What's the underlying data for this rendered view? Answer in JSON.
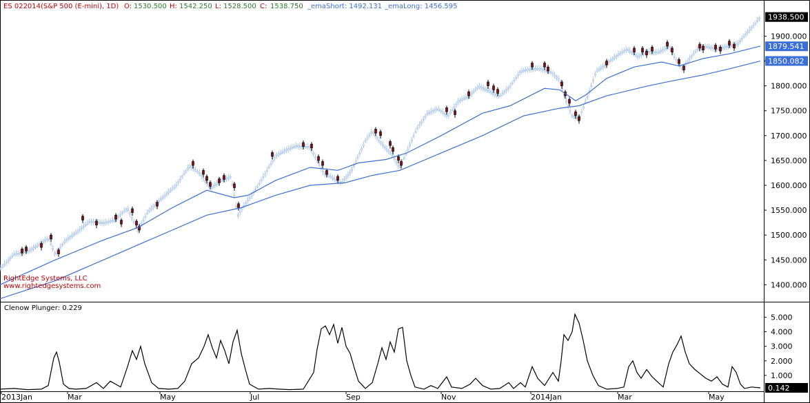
{
  "header": {
    "symbol": "ES 022014(S&P 500 (E-mini), 1D)",
    "o_label": "O:",
    "o_value": "1530.500",
    "h_label": "H:",
    "h_value": "1542.250",
    "l_label": "L:",
    "l_value": "1528.500",
    "c_label": "C:",
    "c_value": "1538.750",
    "ema_short": "_emaShort: 1492.131",
    "ema_long": "_emaLong: 1456.595"
  },
  "watermark": {
    "line1": "RightEdge Systems, LLC",
    "line2": "www.rightedgesystems.com"
  },
  "indicator_label": "Clenow Plunger: 0.229",
  "colors": {
    "up_candle": "#a9c6e8",
    "down_candle": "#8b0a0a",
    "ema": "#3a6fd8",
    "plunger": "#000000",
    "last_price_bg": "#000000",
    "ema_short_bg": "#3a6fd8",
    "ema_long_bg": "#3a6fd8",
    "header_red": "#c00000",
    "header_green": "#2a7a2a",
    "header_blue": "#3a6fd8"
  },
  "chart_data": [
    {
      "type": "candlestick",
      "panel": "price",
      "x_ticks": [
        "2013Jan",
        "Mar",
        "May",
        "Jul",
        "Sep",
        "Nov",
        "2014Jan",
        "Mar",
        "May"
      ],
      "y_ticks": [
        "1400.000",
        "1450.000",
        "1500.000",
        "1550.000",
        "1600.000",
        "1650.000",
        "1700.000",
        "1750.000",
        "1800.000",
        "1850.000",
        "1900.000"
      ],
      "ylim": [
        1370,
        1945
      ],
      "price_points": [
        [
          0,
          1432
        ],
        [
          20,
          1462
        ],
        [
          40,
          1468
        ],
        [
          55,
          1480
        ],
        [
          70,
          1495
        ],
        [
          80,
          1462
        ],
        [
          95,
          1490
        ],
        [
          110,
          1505
        ],
        [
          130,
          1528
        ],
        [
          150,
          1525
        ],
        [
          165,
          1530
        ],
        [
          185,
          1555
        ],
        [
          200,
          1510
        ],
        [
          215,
          1548
        ],
        [
          235,
          1575
        ],
        [
          255,
          1600
        ],
        [
          275,
          1640
        ],
        [
          290,
          1625
        ],
        [
          305,
          1595
        ],
        [
          320,
          1610
        ],
        [
          335,
          1618
        ],
        [
          345,
          1540
        ],
        [
          355,
          1562
        ],
        [
          370,
          1590
        ],
        [
          385,
          1625
        ],
        [
          400,
          1660
        ],
        [
          415,
          1672
        ],
        [
          430,
          1680
        ],
        [
          450,
          1678
        ],
        [
          460,
          1650
        ],
        [
          470,
          1625
        ],
        [
          480,
          1618
        ],
        [
          495,
          1605
        ],
        [
          510,
          1630
        ],
        [
          520,
          1660
        ],
        [
          530,
          1690
        ],
        [
          540,
          1710
        ],
        [
          550,
          1690
        ],
        [
          560,
          1675
        ],
        [
          570,
          1660
        ],
        [
          580,
          1635
        ],
        [
          590,
          1668
        ],
        [
          605,
          1715
        ],
        [
          620,
          1745
        ],
        [
          635,
          1755
        ],
        [
          650,
          1740
        ],
        [
          665,
          1770
        ],
        [
          680,
          1780
        ],
        [
          695,
          1800
        ],
        [
          710,
          1790
        ],
        [
          725,
          1780
        ],
        [
          740,
          1800
        ],
        [
          755,
          1830
        ],
        [
          770,
          1835
        ],
        [
          785,
          1835
        ],
        [
          800,
          1828
        ],
        [
          812,
          1812
        ],
        [
          820,
          1775
        ],
        [
          830,
          1740
        ],
        [
          840,
          1735
        ],
        [
          850,
          1770
        ],
        [
          865,
          1830
        ],
        [
          880,
          1845
        ],
        [
          895,
          1862
        ],
        [
          910,
          1875
        ],
        [
          925,
          1860
        ],
        [
          940,
          1870
        ],
        [
          955,
          1868
        ],
        [
          970,
          1880
        ],
        [
          980,
          1855
        ],
        [
          990,
          1835
        ],
        [
          1000,
          1855
        ],
        [
          1012,
          1875
        ],
        [
          1025,
          1880
        ],
        [
          1040,
          1875
        ],
        [
          1055,
          1880
        ],
        [
          1070,
          1885
        ],
        [
          1085,
          1910
        ],
        [
          1095,
          1925
        ],
        [
          1103,
          1940
        ]
      ],
      "down_candles": [
        [
          32,
          1464
        ],
        [
          38,
          1468
        ],
        [
          60,
          1475
        ],
        [
          74,
          1492
        ],
        [
          85,
          1462
        ],
        [
          120,
          1530
        ],
        [
          140,
          1520
        ],
        [
          168,
          1532
        ],
        [
          176,
          1522
        ],
        [
          192,
          1545
        ],
        [
          198,
          1520
        ],
        [
          202,
          1510
        ],
        [
          228,
          1558
        ],
        [
          280,
          1640
        ],
        [
          295,
          1622
        ],
        [
          300,
          1610
        ],
        [
          305,
          1598
        ],
        [
          318,
          1605
        ],
        [
          325,
          1612
        ],
        [
          340,
          1595
        ],
        [
          346,
          1555
        ],
        [
          395,
          1658
        ],
        [
          440,
          1678
        ],
        [
          452,
          1675
        ],
        [
          462,
          1650
        ],
        [
          468,
          1640
        ],
        [
          474,
          1622
        ],
        [
          490,
          1610
        ],
        [
          545,
          1705
        ],
        [
          552,
          1700
        ],
        [
          566,
          1680
        ],
        [
          570,
          1668
        ],
        [
          578,
          1650
        ],
        [
          582,
          1640
        ],
        [
          648,
          1748
        ],
        [
          660,
          1742
        ],
        [
          680,
          1780
        ],
        [
          708,
          1800
        ],
        [
          716,
          1792
        ],
        [
          722,
          1785
        ],
        [
          772,
          1838
        ],
        [
          790,
          1838
        ],
        [
          795,
          1830
        ],
        [
          815,
          1800
        ],
        [
          820,
          1780
        ],
        [
          826,
          1765
        ],
        [
          835,
          1740
        ],
        [
          840,
          1730
        ],
        [
          880,
          1842
        ],
        [
          920,
          1868
        ],
        [
          932,
          1868
        ],
        [
          938,
          1862
        ],
        [
          946,
          1870
        ],
        [
          968,
          1880
        ],
        [
          975,
          1868
        ],
        [
          985,
          1845
        ],
        [
          992,
          1832
        ],
        [
          1015,
          1876
        ],
        [
          1020,
          1872
        ],
        [
          1038,
          1874
        ],
        [
          1045,
          1870
        ],
        [
          1058,
          1882
        ],
        [
          1065,
          1876
        ]
      ],
      "ema_short": [
        [
          0,
          1400
        ],
        [
          80,
          1450
        ],
        [
          150,
          1490
        ],
        [
          200,
          1515
        ],
        [
          250,
          1555
        ],
        [
          300,
          1590
        ],
        [
          340,
          1575
        ],
        [
          360,
          1580
        ],
        [
          400,
          1610
        ],
        [
          450,
          1636
        ],
        [
          490,
          1630
        ],
        [
          520,
          1645
        ],
        [
          560,
          1652
        ],
        [
          590,
          1665
        ],
        [
          640,
          1700
        ],
        [
          700,
          1745
        ],
        [
          740,
          1760
        ],
        [
          790,
          1795
        ],
        [
          812,
          1792
        ],
        [
          835,
          1770
        ],
        [
          850,
          1782
        ],
        [
          880,
          1815
        ],
        [
          920,
          1838
        ],
        [
          960,
          1848
        ],
        [
          985,
          1840
        ],
        [
          1020,
          1855
        ],
        [
          1060,
          1865
        ],
        [
          1103,
          1880
        ]
      ],
      "ema_long": [
        [
          0,
          1372
        ],
        [
          80,
          1408
        ],
        [
          150,
          1450
        ],
        [
          200,
          1480
        ],
        [
          250,
          1510
        ],
        [
          300,
          1540
        ],
        [
          350,
          1555
        ],
        [
          400,
          1580
        ],
        [
          450,
          1600
        ],
        [
          500,
          1605
        ],
        [
          540,
          1620
        ],
        [
          580,
          1630
        ],
        [
          640,
          1665
        ],
        [
          700,
          1700
        ],
        [
          760,
          1740
        ],
        [
          812,
          1755
        ],
        [
          840,
          1760
        ],
        [
          880,
          1780
        ],
        [
          940,
          1800
        ],
        [
          975,
          1810
        ],
        [
          1020,
          1822
        ],
        [
          1060,
          1835
        ],
        [
          1103,
          1850
        ]
      ],
      "last_price": "1938.500",
      "ema_short_value": "1879.541",
      "ema_long_value": "1850.082"
    },
    {
      "type": "line",
      "panel": "indicator",
      "name": "Clenow Plunger",
      "y_ticks": [
        "1.000",
        "2.000",
        "3.000",
        "4.000",
        "5.000"
      ],
      "ylim": [
        0,
        5.4
      ],
      "points": [
        [
          0,
          0.05
        ],
        [
          20,
          0.1
        ],
        [
          40,
          0.02
        ],
        [
          60,
          0.05
        ],
        [
          70,
          0.3
        ],
        [
          78,
          2.2
        ],
        [
          82,
          2.6
        ],
        [
          86,
          1.9
        ],
        [
          92,
          0.4
        ],
        [
          100,
          0.1
        ],
        [
          110,
          0.05
        ],
        [
          125,
          0.1
        ],
        [
          140,
          0.5
        ],
        [
          150,
          0.1
        ],
        [
          160,
          0.6
        ],
        [
          175,
          0.2
        ],
        [
          185,
          1.6
        ],
        [
          192,
          2.7
        ],
        [
          198,
          2.1
        ],
        [
          204,
          3.0
        ],
        [
          210,
          1.8
        ],
        [
          220,
          0.5
        ],
        [
          230,
          0.1
        ],
        [
          245,
          0.05
        ],
        [
          258,
          0.1
        ],
        [
          268,
          0.6
        ],
        [
          278,
          1.8
        ],
        [
          288,
          2.2
        ],
        [
          296,
          3.0
        ],
        [
          302,
          3.8
        ],
        [
          308,
          2.9
        ],
        [
          314,
          2.2
        ],
        [
          320,
          3.4
        ],
        [
          326,
          2.7
        ],
        [
          332,
          1.8
        ],
        [
          338,
          3.3
        ],
        [
          344,
          4.1
        ],
        [
          350,
          2.5
        ],
        [
          356,
          1.4
        ],
        [
          362,
          0.4
        ],
        [
          375,
          0.05
        ],
        [
          390,
          0.1
        ],
        [
          405,
          0.05
        ],
        [
          420,
          0.02
        ],
        [
          440,
          0.05
        ],
        [
          455,
          1.2
        ],
        [
          460,
          2.8
        ],
        [
          466,
          4.2
        ],
        [
          472,
          4.4
        ],
        [
          478,
          3.8
        ],
        [
          484,
          4.5
        ],
        [
          490,
          3.2
        ],
        [
          496,
          4.3
        ],
        [
          502,
          3.0
        ],
        [
          508,
          2.5
        ],
        [
          514,
          1.5
        ],
        [
          520,
          0.6
        ],
        [
          530,
          0.1
        ],
        [
          540,
          0.5
        ],
        [
          548,
          1.8
        ],
        [
          554,
          2.9
        ],
        [
          560,
          2.1
        ],
        [
          566,
          3.3
        ],
        [
          572,
          2.6
        ],
        [
          578,
          4.2
        ],
        [
          584,
          4.3
        ],
        [
          590,
          2.0
        ],
        [
          596,
          1.0
        ],
        [
          602,
          0.2
        ],
        [
          615,
          0.05
        ],
        [
          625,
          0.3
        ],
        [
          635,
          0.1
        ],
        [
          648,
          0.9
        ],
        [
          655,
          0.2
        ],
        [
          670,
          0.1
        ],
        [
          682,
          0.4
        ],
        [
          690,
          0.8
        ],
        [
          700,
          0.3
        ],
        [
          712,
          0.05
        ],
        [
          725,
          0.1
        ],
        [
          738,
          0.5
        ],
        [
          745,
          0.1
        ],
        [
          755,
          0.5
        ],
        [
          762,
          0.2
        ],
        [
          772,
          1.6
        ],
        [
          780,
          0.8
        ],
        [
          790,
          0.3
        ],
        [
          802,
          1.2
        ],
        [
          810,
          0.6
        ],
        [
          814,
          2.0
        ],
        [
          818,
          3.8
        ],
        [
          824,
          3.4
        ],
        [
          830,
          4.0
        ],
        [
          834,
          5.2
        ],
        [
          840,
          4.6
        ],
        [
          846,
          3.4
        ],
        [
          852,
          2.0
        ],
        [
          860,
          1.0
        ],
        [
          868,
          0.3
        ],
        [
          880,
          0.05
        ],
        [
          895,
          0.1
        ],
        [
          905,
          0.2
        ],
        [
          912,
          1.6
        ],
        [
          918,
          2.0
        ],
        [
          924,
          1.2
        ],
        [
          930,
          0.8
        ],
        [
          938,
          1.4
        ],
        [
          946,
          0.9
        ],
        [
          955,
          0.5
        ],
        [
          962,
          0.2
        ],
        [
          970,
          1.8
        ],
        [
          976,
          2.6
        ],
        [
          982,
          3.1
        ],
        [
          988,
          3.7
        ],
        [
          994,
          2.6
        ],
        [
          1000,
          1.8
        ],
        [
          1008,
          1.4
        ],
        [
          1016,
          1.1
        ],
        [
          1024,
          0.8
        ],
        [
          1032,
          0.6
        ],
        [
          1040,
          0.9
        ],
        [
          1048,
          0.4
        ],
        [
          1056,
          0.2
        ],
        [
          1062,
          1.6
        ],
        [
          1068,
          1.2
        ],
        [
          1074,
          0.4
        ],
        [
          1080,
          0.1
        ],
        [
          1090,
          0.2
        ],
        [
          1103,
          0.14
        ]
      ],
      "last_value": "0.142"
    }
  ]
}
